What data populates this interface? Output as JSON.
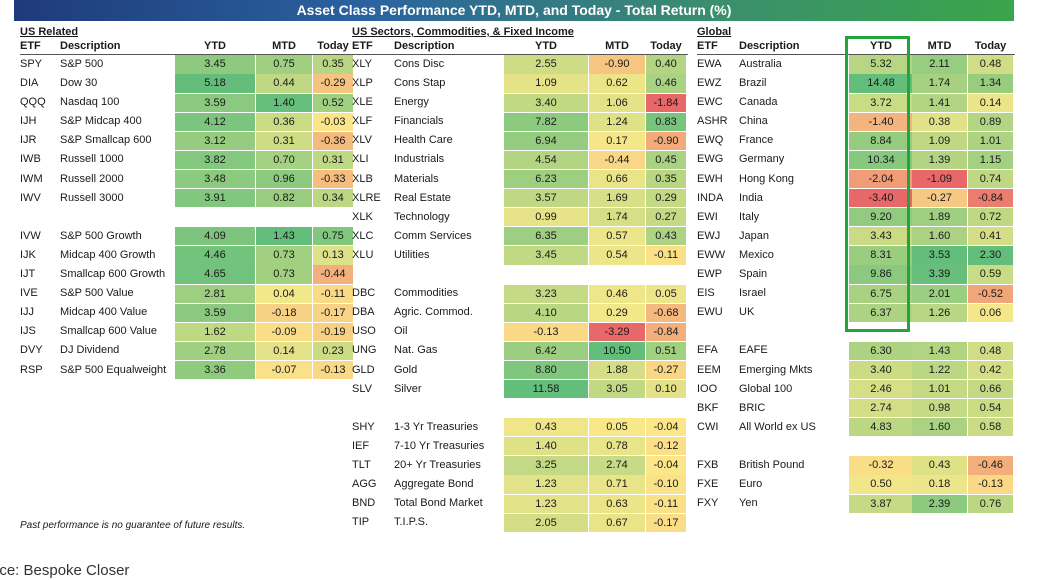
{
  "title": "Asset Class Performance YTD, MTD, and Today - Total Return (%)",
  "headers": {
    "etf": "ETF",
    "desc": "Description",
    "ytd": "YTD",
    "mtd": "MTD",
    "today": "Today"
  },
  "sections": [
    {
      "title": "US Related",
      "rows": [
        {
          "etf": "SPY",
          "desc": "S&P 500",
          "ytd": "3.45",
          "mtd": "0.75",
          "today": "0.35"
        },
        {
          "etf": "DIA",
          "desc": "Dow 30",
          "ytd": "5.18",
          "mtd": "0.44",
          "today": "-0.29"
        },
        {
          "etf": "QQQ",
          "desc": "Nasdaq 100",
          "ytd": "3.59",
          "mtd": "1.40",
          "today": "0.52"
        },
        {
          "etf": "IJH",
          "desc": "S&P Midcap 400",
          "ytd": "4.12",
          "mtd": "0.36",
          "today": "-0.03"
        },
        {
          "etf": "IJR",
          "desc": "S&P Smallcap 600",
          "ytd": "3.12",
          "mtd": "0.31",
          "today": "-0.36"
        },
        {
          "etf": "IWB",
          "desc": "Russell 1000",
          "ytd": "3.82",
          "mtd": "0.70",
          "today": "0.31"
        },
        {
          "etf": "IWM",
          "desc": "Russell 2000",
          "ytd": "3.48",
          "mtd": "0.96",
          "today": "-0.33"
        },
        {
          "etf": "IWV",
          "desc": "Russell 3000",
          "ytd": "3.91",
          "mtd": "0.82",
          "today": "0.34"
        },
        null,
        {
          "etf": "IVW",
          "desc": "S&P 500 Growth",
          "ytd": "4.09",
          "mtd": "1.43",
          "today": "0.75"
        },
        {
          "etf": "IJK",
          "desc": "Midcap 400 Growth",
          "ytd": "4.46",
          "mtd": "0.73",
          "today": "0.13"
        },
        {
          "etf": "IJT",
          "desc": "Smallcap 600 Growth",
          "ytd": "4.65",
          "mtd": "0.73",
          "today": "-0.44"
        },
        {
          "etf": "IVE",
          "desc": "S&P 500 Value",
          "ytd": "2.81",
          "mtd": "0.04",
          "today": "-0.11"
        },
        {
          "etf": "IJJ",
          "desc": "Midcap 400 Value",
          "ytd": "3.59",
          "mtd": "-0.18",
          "today": "-0.17"
        },
        {
          "etf": "IJS",
          "desc": "Smallcap 600 Value",
          "ytd": "1.62",
          "mtd": "-0.09",
          "today": "-0.19"
        },
        {
          "etf": "DVY",
          "desc": "DJ Dividend",
          "ytd": "2.78",
          "mtd": "0.14",
          "today": "0.23"
        },
        {
          "etf": "RSP",
          "desc": "S&P 500 Equalweight",
          "ytd": "3.36",
          "mtd": "-0.07",
          "today": "-0.13"
        }
      ]
    },
    {
      "title": "US Sectors, Commodities, & Fixed Income",
      "rows": [
        {
          "etf": "XLY",
          "desc": "Cons Disc",
          "ytd": "2.55",
          "mtd": "-0.90",
          "today": "0.40"
        },
        {
          "etf": "XLP",
          "desc": "Cons Stap",
          "ytd": "1.09",
          "mtd": "0.62",
          "today": "0.46"
        },
        {
          "etf": "XLE",
          "desc": "Energy",
          "ytd": "3.40",
          "mtd": "1.06",
          "today": "-1.84"
        },
        {
          "etf": "XLF",
          "desc": "Financials",
          "ytd": "7.82",
          "mtd": "1.24",
          "today": "0.83"
        },
        {
          "etf": "XLV",
          "desc": "Health Care",
          "ytd": "6.94",
          "mtd": "0.17",
          "today": "-0.90"
        },
        {
          "etf": "XLI",
          "desc": "Industrials",
          "ytd": "4.54",
          "mtd": "-0.44",
          "today": "0.45"
        },
        {
          "etf": "XLB",
          "desc": "Materials",
          "ytd": "6.23",
          "mtd": "0.66",
          "today": "0.35"
        },
        {
          "etf": "XLRE",
          "desc": "Real Estate",
          "ytd": "3.57",
          "mtd": "1.69",
          "today": "0.29"
        },
        {
          "etf": "XLK",
          "desc": "Technology",
          "ytd": "0.99",
          "mtd": "1.74",
          "today": "0.27"
        },
        {
          "etf": "XLC",
          "desc": "Comm Services",
          "ytd": "6.35",
          "mtd": "0.57",
          "today": "0.43"
        },
        {
          "etf": "XLU",
          "desc": "Utilities",
          "ytd": "3.45",
          "mtd": "0.54",
          "today": "-0.11"
        },
        null,
        {
          "etf": "DBC",
          "desc": "Commodities",
          "ytd": "3.23",
          "mtd": "0.46",
          "today": "0.05"
        },
        {
          "etf": "DBA",
          "desc": "Agric. Commod.",
          "ytd": "4.10",
          "mtd": "0.29",
          "today": "-0.68"
        },
        {
          "etf": "USO",
          "desc": "Oil",
          "ytd": "-0.13",
          "mtd": "-3.29",
          "today": "-0.84"
        },
        {
          "etf": "UNG",
          "desc": "Nat. Gas",
          "ytd": "6.42",
          "mtd": "10.50",
          "today": "0.51"
        },
        {
          "etf": "GLD",
          "desc": "Gold",
          "ytd": "8.80",
          "mtd": "1.88",
          "today": "-0.27"
        },
        {
          "etf": "SLV",
          "desc": "Silver",
          "ytd": "11.58",
          "mtd": "3.05",
          "today": "0.10"
        },
        null,
        {
          "etf": "SHY",
          "desc": "1-3 Yr Treasuries",
          "ytd": "0.43",
          "mtd": "0.05",
          "today": "-0.04"
        },
        {
          "etf": "IEF",
          "desc": "7-10 Yr Treasuries",
          "ytd": "1.40",
          "mtd": "0.78",
          "today": "-0.12"
        },
        {
          "etf": "TLT",
          "desc": "20+ Yr Treasuries",
          "ytd": "3.25",
          "mtd": "2.74",
          "today": "-0.04"
        },
        {
          "etf": "AGG",
          "desc": "Aggregate Bond",
          "ytd": "1.23",
          "mtd": "0.71",
          "today": "-0.10"
        },
        {
          "etf": "BND",
          "desc": "Total Bond Market",
          "ytd": "1.23",
          "mtd": "0.63",
          "today": "-0.11"
        },
        {
          "etf": "TIP",
          "desc": "T.I.P.S.",
          "ytd": "2.05",
          "mtd": "0.67",
          "today": "-0.17"
        }
      ]
    },
    {
      "title": "Global",
      "rows": [
        {
          "etf": "EWA",
          "desc": "Australia",
          "ytd": "5.32",
          "mtd": "2.11",
          "today": "0.48"
        },
        {
          "etf": "EWZ",
          "desc": "Brazil",
          "ytd": "14.48",
          "mtd": "1.74",
          "today": "1.34"
        },
        {
          "etf": "EWC",
          "desc": "Canada",
          "ytd": "3.72",
          "mtd": "1.41",
          "today": "0.14"
        },
        {
          "etf": "ASHR",
          "desc": "China",
          "ytd": "-1.40",
          "mtd": "0.38",
          "today": "0.89"
        },
        {
          "etf": "EWQ",
          "desc": "France",
          "ytd": "8.84",
          "mtd": "1.09",
          "today": "1.01"
        },
        {
          "etf": "EWG",
          "desc": "Germany",
          "ytd": "10.34",
          "mtd": "1.39",
          "today": "1.15"
        },
        {
          "etf": "EWH",
          "desc": "Hong Kong",
          "ytd": "-2.04",
          "mtd": "-1.09",
          "today": "0.74"
        },
        {
          "etf": "INDA",
          "desc": "India",
          "ytd": "-3.40",
          "mtd": "-0.27",
          "today": "-0.84"
        },
        {
          "etf": "EWI",
          "desc": "Italy",
          "ytd": "9.20",
          "mtd": "1.89",
          "today": "0.72"
        },
        {
          "etf": "EWJ",
          "desc": "Japan",
          "ytd": "3.43",
          "mtd": "1.60",
          "today": "0.41"
        },
        {
          "etf": "EWW",
          "desc": "Mexico",
          "ytd": "8.31",
          "mtd": "3.53",
          "today": "2.30"
        },
        {
          "etf": "EWP",
          "desc": "Spain",
          "ytd": "9.86",
          "mtd": "3.39",
          "today": "0.59"
        },
        {
          "etf": "EIS",
          "desc": "Israel",
          "ytd": "6.75",
          "mtd": "2.01",
          "today": "-0.52"
        },
        {
          "etf": "EWU",
          "desc": "UK",
          "ytd": "6.37",
          "mtd": "1.26",
          "today": "0.06"
        },
        null,
        {
          "etf": "EFA",
          "desc": "EAFE",
          "ytd": "6.30",
          "mtd": "1.43",
          "today": "0.48"
        },
        {
          "etf": "EEM",
          "desc": "Emerging Mkts",
          "ytd": "3.40",
          "mtd": "1.22",
          "today": "0.42"
        },
        {
          "etf": "IOO",
          "desc": "Global 100",
          "ytd": "2.46",
          "mtd": "1.01",
          "today": "0.66"
        },
        {
          "etf": "BKF",
          "desc": "BRIC",
          "ytd": "2.74",
          "mtd": "0.98",
          "today": "0.54"
        },
        {
          "etf": "CWI",
          "desc": "All World ex US",
          "ytd": "4.83",
          "mtd": "1.60",
          "today": "0.58"
        },
        null,
        {
          "etf": "FXB",
          "desc": "British Pound",
          "ytd": "-0.32",
          "mtd": "0.43",
          "today": "-0.46"
        },
        {
          "etf": "FXE",
          "desc": "Euro",
          "ytd": "0.50",
          "mtd": "0.18",
          "today": "-0.13"
        },
        {
          "etf": "FXY",
          "desc": "Yen",
          "ytd": "3.87",
          "mtd": "2.39",
          "today": "0.76"
        }
      ]
    }
  ],
  "colors": {
    "neg": "#e8686a",
    "mid": "#fbe98a",
    "pos": "#63be7b",
    "highlight": "#22a63a"
  },
  "chart_data": {
    "type": "table",
    "title": "Asset Class Performance YTD, MTD, and Today - Total Return (%)",
    "columns": [
      "ETF",
      "Description",
      "YTD",
      "MTD",
      "Today"
    ],
    "note": "Heatmap-colored return table; YTD column of Global country ETFs highlighted"
  },
  "footnote": "Past performance is no guarantee of future results.",
  "source": "urce: Bespoke Closer"
}
